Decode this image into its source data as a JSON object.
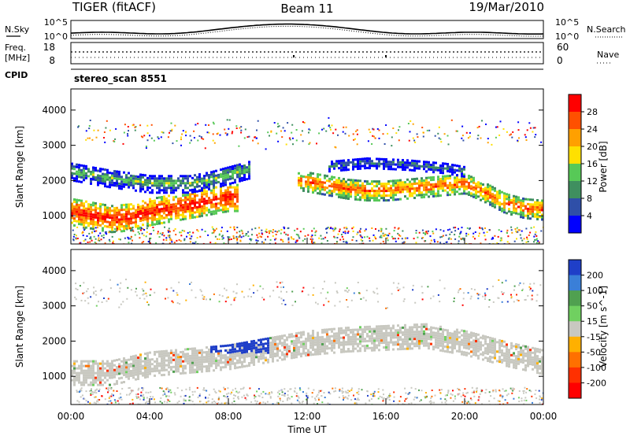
{
  "header": {
    "title": "TIGER (fitACF)",
    "beam": "Beam 11",
    "date": "19/Mar/2010"
  },
  "top_strip": {
    "nsky_label": "N.Sky",
    "nsearch_label": "N.Search",
    "y_ticks_left": [
      "10^5",
      "10^0"
    ],
    "y_ticks_right": [
      "10^5",
      "10^0"
    ]
  },
  "freq_strip": {
    "label_line1": "Freq.",
    "label_line2": "[MHz]",
    "left_ticks": [
      "18",
      "8"
    ],
    "right_ticks": [
      "60",
      "0"
    ],
    "nave_label": "Nave"
  },
  "cpid": {
    "label": "CPID",
    "value": "stereo_scan 8551"
  },
  "chart_data": [
    {
      "type": "heatmap",
      "panel": "power",
      "ylabel": "Slant Range [km]",
      "yticks": [
        1000,
        2000,
        3000,
        4000
      ],
      "ylim": [
        200,
        4600
      ],
      "xlim": [
        0,
        24
      ],
      "colorbar_label": "Power [dB]",
      "colorbar_ticks": [
        "4",
        "8",
        "12",
        "16",
        "20",
        "24",
        "28"
      ],
      "colorbar_colors": [
        "#0000ff",
        "#2f4fa8",
        "#3f8f5f",
        "#57c957",
        "#ffe000",
        "#ffa000",
        "#ff5000",
        "#ff0000"
      ],
      "bands": [
        {
          "t": [
            0,
            1,
            2,
            3,
            4,
            5,
            6,
            7,
            8,
            8.5
          ],
          "r": [
            1150,
            1050,
            950,
            1000,
            1150,
            1250,
            1350,
            1450,
            1550,
            1550
          ],
          "w": 380,
          "level": 7
        },
        {
          "t": [
            0,
            2,
            4,
            6,
            7,
            8,
            9
          ],
          "r": [
            2300,
            2100,
            1950,
            1950,
            2050,
            2200,
            2350
          ],
          "w": 260,
          "level": 3
        },
        {
          "t": [
            11.5,
            12,
            13,
            14,
            15,
            16,
            17,
            18,
            19,
            20,
            21,
            22,
            23,
            24
          ],
          "r": [
            2050,
            2000,
            1900,
            1800,
            1750,
            1750,
            1800,
            1850,
            1900,
            1950,
            1700,
            1400,
            1250,
            1200
          ],
          "w": 280,
          "level": 6
        },
        {
          "t": [
            13,
            15,
            17,
            19,
            20
          ],
          "r": [
            2450,
            2550,
            2500,
            2400,
            2300
          ],
          "w": 160,
          "level": 2
        }
      ]
    },
    {
      "type": "heatmap",
      "panel": "velocity",
      "ylabel": "Slant Range [km]",
      "yticks": [
        1000,
        2000,
        3000,
        4000
      ],
      "ylim": [
        200,
        4600
      ],
      "xlim": [
        0,
        24
      ],
      "xlabel": "Time UT",
      "xticks": [
        "00:00",
        "04:00",
        "08:00",
        "12:00",
        "16:00",
        "20:00",
        "00:00"
      ],
      "colorbar_label": "Velocity [m s^-1]",
      "colorbar_ticks": [
        "200",
        "100",
        "50",
        "15",
        "-15",
        "-50",
        "-100",
        "-200"
      ],
      "colorbar_colors": [
        "#1f3fc8",
        "#3a7fd8",
        "#50a050",
        "#70d060",
        "#c8c8c0",
        "#ffb000",
        "#ff7000",
        "#ff3000",
        "#ff0000"
      ],
      "ground_scatter_color": "#c8c8c0",
      "bands": [
        {
          "t": [
            0,
            2,
            4,
            6,
            8,
            10,
            12,
            14,
            16,
            18,
            20,
            22,
            24
          ],
          "r": [
            1150,
            1150,
            1400,
            1500,
            1600,
            1800,
            2000,
            2100,
            2150,
            2200,
            2000,
            1700,
            1450
          ],
          "w": 360,
          "level": 4
        }
      ]
    }
  ]
}
